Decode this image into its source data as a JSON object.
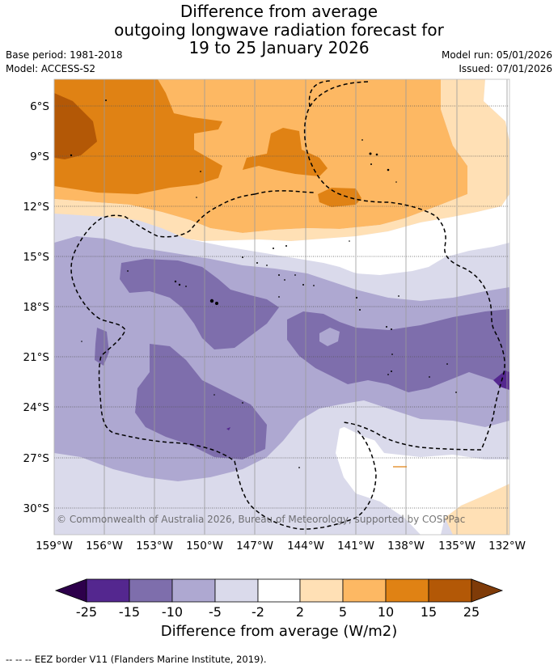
{
  "title_lines": [
    "Difference from average",
    "outgoing longwave radiation forecast for",
    "19 to 25 January 2026"
  ],
  "base_period": "Base period: 1981-2018",
  "model": "Model: ACCESS-S2",
  "model_run": "Model run: 05/01/2026",
  "issued": "Issued: 07/01/2026",
  "map": {
    "lat_ticks": [
      "6°S",
      "9°S",
      "12°S",
      "15°S",
      "18°S",
      "21°S",
      "24°S",
      "27°S",
      "30°S"
    ],
    "lon_ticks": [
      "159°W",
      "156°W",
      "153°W",
      "150°W",
      "147°W",
      "144°W",
      "141°W",
      "138°W",
      "135°W",
      "132°W"
    ],
    "copyright": "© Commonwealth of Australia 2026, Bureau of Meteorology, supported by COSPPac"
  },
  "colorbar": {
    "levels": [
      "-25",
      "-15",
      "-10",
      "-5",
      "-2",
      "2",
      "5",
      "10",
      "15",
      "25"
    ],
    "colors": [
      "#54278f",
      "#7e6eac",
      "#aea8d1",
      "#dadaeb",
      "#ffffff",
      "#ffe0b5",
      "#fdb863",
      "#e08214",
      "#b35806"
    ],
    "extend_low_color": "#2d004b",
    "extend_high_color": "#7f3b08",
    "label": "Difference from average (W/m2)"
  },
  "palette": {
    "p15": "#7e6eac",
    "p10": "#aea8d1",
    "p5": "#dadaeb",
    "p2": "#ffffff",
    "o2": "#ffe0b5",
    "o5": "#fdb863",
    "o10": "#e08214",
    "o15": "#b35806",
    "p25": "#54278f"
  },
  "footnote": "-- -- -- EEZ border V11 (Flanders Marine Institute, 2019)."
}
